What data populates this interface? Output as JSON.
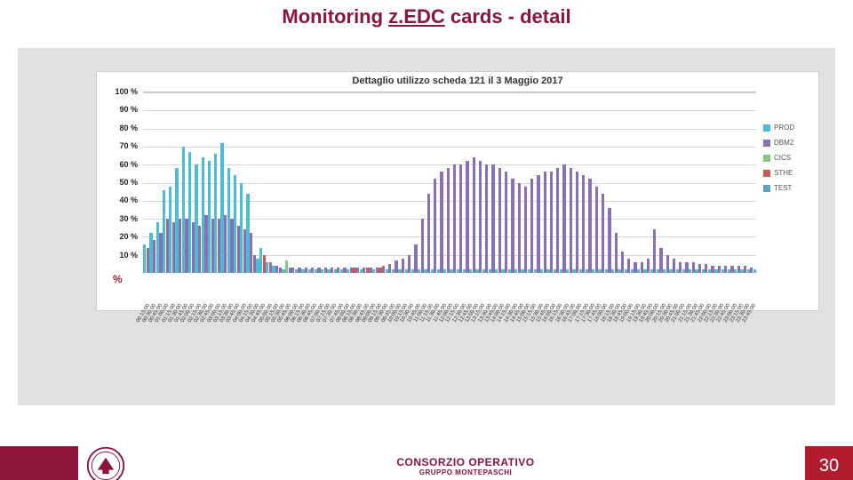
{
  "title_prefix": "Monitoring ",
  "title_underline": "z.EDC",
  "title_suffix": " cards - detail",
  "title_color": "#8a1538",
  "page_number": "30",
  "footer": {
    "maroon_color": "#8a1538",
    "page_bg": "#b01c2e",
    "brand_line1": "CONSORZIO OPERATIVO",
    "brand_line2": "GRUPPO MONTEPASCHI"
  },
  "chart": {
    "type": "grouped-bar",
    "title": "Dettaglio utilizzo scheda 121 il 3 Maggio 2017",
    "background": "#ffffff",
    "panel_bg": "#e0e0e0",
    "grid_color": "#d8d8d8",
    "border_color": "#cfcfcf",
    "ylim": [
      0,
      100
    ],
    "ytick_step": 10,
    "ytick_labels": [
      "100 %",
      "90 %",
      "80 %",
      "70 %",
      "60 %",
      "50 %",
      "40 %",
      "30 %",
      "20 %",
      "10 %"
    ],
    "y_unit": "%",
    "y_unit_color": "#b01c2e",
    "series": [
      {
        "key": "prod",
        "label": "PROD",
        "color": "#4bbcd4"
      },
      {
        "key": "dbm2",
        "label": "DBM2",
        "color": "#8b6fb3"
      },
      {
        "key": "cics",
        "label": "CICS",
        "color": "#7fc97a"
      },
      {
        "key": "sthe",
        "label": "STHE",
        "color": "#d2564a"
      },
      {
        "key": "test",
        "label": "TEST",
        "color": "#5aa3c7"
      }
    ],
    "categories": [
      "00:15:00",
      "00:30:00",
      "00:45:00",
      "01:00:00",
      "01:15:00",
      "01:30:00",
      "01:45:00",
      "02:00:00",
      "02:15:00",
      "02:30:00",
      "02:45:00",
      "03:00:00",
      "03:15:00",
      "03:30:00",
      "03:45:00",
      "04:00:00",
      "04:15:00",
      "04:30:00",
      "04:45:00",
      "05:00:00",
      "05:15:00",
      "05:30:00",
      "05:45:00",
      "06:00:00",
      "06:15:00",
      "06:30:00",
      "06:45:00",
      "07:00:00",
      "07:15:00",
      "07:30:00",
      "07:45:00",
      "08:00:00",
      "08:15:00",
      "08:30:00",
      "08:45:00",
      "09:00:00",
      "09:15:00",
      "09:30:00",
      "09:45:00",
      "10:00:00",
      "10:15:00",
      "10:30:00",
      "10:45:00",
      "11:00:00",
      "11:15:00",
      "11:30:00",
      "11:45:00",
      "12:00:00",
      "12:15:00",
      "12:30:00",
      "12:45:00",
      "13:00:00",
      "13:15:00",
      "13:30:00",
      "13:45:00",
      "14:00:00",
      "14:15:00",
      "14:30:00",
      "14:45:00",
      "15:00:00",
      "15:15:00",
      "15:30:00",
      "15:45:00",
      "16:00:00",
      "16:15:00",
      "16:30:00",
      "16:45:00",
      "17:00:00",
      "17:15:00",
      "17:30:00",
      "17:45:00",
      "18:00:00",
      "18:15:00",
      "18:30:00",
      "18:45:00",
      "19:00:00",
      "19:15:00",
      "19:30:00",
      "19:45:00",
      "20:00:00",
      "20:15:00",
      "20:30:00",
      "20:45:00",
      "21:00:00",
      "21:15:00",
      "21:30:00",
      "21:45:00",
      "22:00:00",
      "22:15:00",
      "22:30:00",
      "22:45:00",
      "23:00:00",
      "23:15:00",
      "23:30:00",
      "23:45:00"
    ],
    "data": {
      "prod": [
        16,
        22,
        28,
        46,
        48,
        58,
        70,
        67,
        60,
        64,
        62,
        66,
        72,
        58,
        54,
        50,
        44,
        8,
        14,
        6,
        4,
        2,
        2,
        2,
        2,
        2,
        2,
        2,
        2,
        2,
        2,
        2,
        2,
        2,
        2,
        2,
        2,
        2,
        2,
        2,
        2,
        2,
        2,
        2,
        2,
        2,
        2,
        2,
        2,
        2,
        2,
        2,
        2,
        2,
        2,
        2,
        2,
        2,
        2,
        2,
        2,
        2,
        2,
        2,
        2,
        2,
        2,
        2,
        2,
        2,
        2,
        2,
        2,
        2,
        2,
        2,
        2,
        2,
        2,
        2,
        2,
        2,
        2,
        2,
        2,
        2,
        2,
        2,
        2,
        2,
        2,
        2,
        2,
        2,
        2
      ],
      "dbm2": [
        14,
        18,
        22,
        30,
        28,
        30,
        30,
        28,
        26,
        32,
        30,
        30,
        32,
        30,
        26,
        24,
        22,
        10,
        4,
        6,
        4,
        3,
        3,
        3,
        3,
        3,
        3,
        3,
        3,
        3,
        3,
        3,
        3,
        3,
        3,
        3,
        3,
        4,
        5,
        7,
        8,
        10,
        16,
        30,
        44,
        52,
        56,
        58,
        60,
        60,
        62,
        64,
        62,
        60,
        60,
        58,
        56,
        52,
        50,
        48,
        52,
        54,
        56,
        56,
        58,
        60,
        58,
        56,
        54,
        52,
        48,
        44,
        36,
        22,
        12,
        8,
        6,
        6,
        8,
        24,
        14,
        10,
        8,
        6,
        6,
        6,
        5,
        5,
        4,
        4,
        4,
        4,
        4,
        4,
        3
      ],
      "cics": [
        0,
        0,
        0,
        0,
        0,
        0,
        0,
        0,
        0,
        0,
        0,
        0,
        0,
        0,
        0,
        0,
        0,
        0,
        0,
        0,
        0,
        0,
        7,
        0,
        0,
        0,
        0,
        0,
        0,
        0,
        0,
        0,
        0,
        0,
        0,
        0,
        0,
        0,
        0,
        0,
        0,
        0,
        0,
        0,
        0,
        0,
        0,
        0,
        0,
        0,
        0,
        0,
        0,
        0,
        0,
        0,
        0,
        0,
        0,
        0,
        0,
        0,
        0,
        0,
        0,
        0,
        0,
        0,
        0,
        0,
        0,
        0,
        0,
        0,
        0,
        0,
        0,
        0,
        0,
        0,
        0,
        0,
        0,
        0,
        0,
        0,
        0,
        0,
        0,
        0,
        0,
        0,
        0,
        0,
        0
      ],
      "sthe": [
        0,
        0,
        0,
        0,
        0,
        0,
        0,
        0,
        0,
        0,
        0,
        0,
        0,
        0,
        0,
        0,
        0,
        0,
        10,
        4,
        0,
        0,
        0,
        0,
        0,
        0,
        0,
        0,
        0,
        0,
        0,
        0,
        3,
        0,
        3,
        0,
        3,
        0,
        0,
        0,
        0,
        0,
        0,
        0,
        0,
        0,
        0,
        0,
        0,
        0,
        0,
        0,
        0,
        0,
        0,
        0,
        0,
        0,
        0,
        0,
        0,
        0,
        0,
        0,
        0,
        0,
        0,
        0,
        0,
        0,
        0,
        0,
        0,
        0,
        0,
        0,
        0,
        0,
        0,
        0,
        0,
        0,
        0,
        0,
        0,
        0,
        0,
        0,
        0,
        0,
        0,
        0,
        0,
        0,
        0
      ],
      "test": [
        0,
        0,
        0,
        0,
        0,
        0,
        0,
        0,
        0,
        0,
        0,
        0,
        0,
        0,
        0,
        0,
        0,
        0,
        0,
        0,
        0,
        0,
        0,
        0,
        0,
        0,
        0,
        0,
        0,
        0,
        0,
        0,
        0,
        0,
        0,
        0,
        0,
        0,
        0,
        0,
        0,
        0,
        0,
        0,
        0,
        0,
        0,
        0,
        0,
        0,
        0,
        0,
        0,
        0,
        0,
        0,
        0,
        0,
        0,
        0,
        0,
        0,
        0,
        0,
        0,
        0,
        0,
        0,
        0,
        0,
        0,
        0,
        0,
        0,
        0,
        0,
        0,
        0,
        0,
        0,
        0,
        0,
        0,
        0,
        0,
        0,
        0,
        0,
        0,
        0,
        0,
        0,
        0,
        0,
        0
      ]
    }
  }
}
